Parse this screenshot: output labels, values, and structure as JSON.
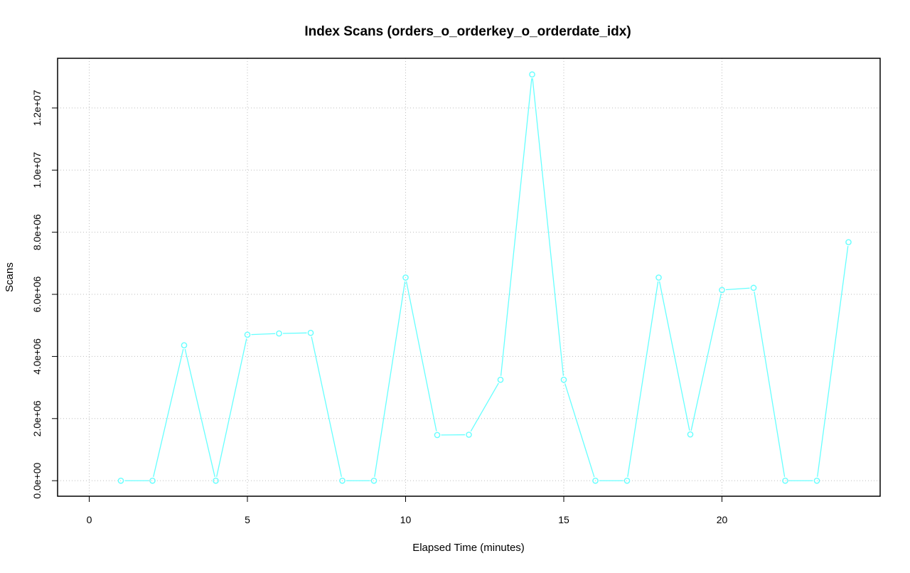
{
  "chart_data": {
    "type": "line",
    "title": "Index Scans (orders_o_orderkey_o_orderdate_idx)",
    "xlabel": "Elapsed Time (minutes)",
    "ylabel": "Scans",
    "xlim": [
      -1,
      25
    ],
    "ylim": [
      -500000,
      13600000
    ],
    "x_ticks": [
      0,
      5,
      10,
      15,
      20
    ],
    "x_tick_labels": [
      "0",
      "5",
      "10",
      "15",
      "20"
    ],
    "y_ticks": [
      0,
      2000000,
      4000000,
      6000000,
      8000000,
      10000000,
      12000000
    ],
    "y_tick_labels": [
      "0.0e+00",
      "2.0e+06",
      "4.0e+06",
      "6.0e+06",
      "8.0e+06",
      "1.0e+07",
      "1.2e+07"
    ],
    "grid": true,
    "series_color": "#66ffff",
    "series": [
      {
        "x": [
          1,
          2,
          3,
          4,
          5,
          6,
          7,
          8,
          9,
          10,
          11,
          12,
          13,
          14,
          15,
          16,
          17,
          18,
          19,
          20,
          21,
          22,
          23,
          24
        ],
        "values": [
          0,
          0,
          4360000,
          0,
          4700000,
          4740000,
          4760000,
          0,
          0,
          6540000,
          1470000,
          1480000,
          3250000,
          13080000,
          3250000,
          0,
          0,
          6540000,
          1490000,
          6140000,
          6210000,
          0,
          0,
          7680000
        ]
      }
    ]
  }
}
